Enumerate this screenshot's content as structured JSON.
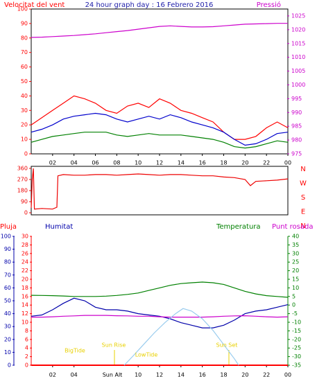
{
  "chart_data": [
    {
      "type": "line",
      "title": "24 hour graph day : 16 Febrero 2016",
      "x": [
        0,
        1,
        2,
        3,
        4,
        5,
        6,
        7,
        8,
        9,
        10,
        11,
        12,
        13,
        14,
        15,
        16,
        17,
        18,
        19,
        20,
        21,
        22,
        23,
        24
      ],
      "xlim": [
        0,
        24
      ],
      "xticks": [
        {
          "value": 2,
          "label": "02"
        },
        {
          "value": 4,
          "label": "04"
        },
        {
          "value": 6,
          "label": "06"
        },
        {
          "value": 8,
          "label": "08"
        },
        10,
        12,
        14,
        16,
        18,
        20,
        22,
        {
          "value": 24,
          "label": "00"
        }
      ],
      "ylim": [
        0,
        100
      ],
      "yticks": [
        0,
        10,
        20,
        30,
        40,
        50,
        60,
        70,
        80,
        90,
        100
      ],
      "y2lim": [
        975,
        1027.5
      ],
      "y2ticks": [
        975,
        980,
        985,
        990,
        995,
        1000,
        1005,
        1010,
        1015,
        1020,
        1025
      ],
      "series": [
        {
          "name": "Velocitat del vent",
          "color": "#ff0000",
          "values": [
            20,
            25,
            30,
            35,
            40,
            38,
            35,
            30,
            28,
            33,
            35,
            32,
            38,
            35,
            30,
            28,
            25,
            22,
            15,
            10,
            10,
            12,
            18,
            22,
            18
          ]
        },
        {
          "color": "#0000cc",
          "values": [
            15,
            17,
            20,
            24,
            26,
            27,
            28,
            27,
            24,
            22,
            24,
            26,
            24,
            27,
            25,
            22,
            20,
            18,
            15,
            10,
            6,
            7,
            10,
            14,
            15
          ]
        },
        {
          "color": "#008000",
          "values": [
            8,
            10,
            12,
            13,
            14,
            15,
            15,
            15,
            13,
            12,
            13,
            14,
            13,
            13,
            13,
            12,
            11,
            10,
            8,
            5,
            4,
            5,
            7,
            9,
            8
          ]
        },
        {
          "name": "Pressió",
          "color": "#cc00cc",
          "axis": "y2",
          "values": [
            1017.2,
            1017.3,
            1017.5,
            1017.7,
            1017.9,
            1018.2,
            1018.5,
            1018.9,
            1019.3,
            1019.7,
            1020.2,
            1020.7,
            1021.2,
            1021.4,
            1021.2,
            1021,
            1021,
            1021.1,
            1021.4,
            1021.7,
            1022,
            1022.1,
            1022.2,
            1022.3,
            1022.3
          ]
        }
      ]
    },
    {
      "type": "line",
      "x": [
        0,
        0.1,
        0.2,
        0.3,
        1,
        2,
        2.4,
        2.5,
        3,
        4,
        5,
        6,
        7,
        8,
        9,
        10,
        11,
        12,
        13,
        14,
        15,
        16,
        17,
        18,
        19,
        20,
        20.5,
        21,
        22,
        23,
        24
      ],
      "xlim": [
        0,
        24
      ],
      "ylim": [
        0,
        360
      ],
      "yticks": [
        0,
        90,
        180,
        270,
        360
      ],
      "compass": [
        "N",
        "W",
        "S",
        "E",
        "N"
      ],
      "series": [
        {
          "color": "#ee0000",
          "values": [
            40,
            270,
            360,
            30,
            35,
            30,
            45,
            300,
            310,
            305,
            305,
            310,
            310,
            305,
            310,
            315,
            310,
            305,
            310,
            310,
            305,
            300,
            300,
            290,
            285,
            270,
            220,
            255,
            260,
            265,
            275
          ]
        }
      ]
    },
    {
      "type": "line",
      "x": [
        0,
        1,
        2,
        3,
        4,
        5,
        6,
        7,
        8,
        9,
        10,
        11,
        12,
        13,
        14,
        15,
        16,
        17,
        18,
        19,
        20,
        21,
        22,
        23,
        24
      ],
      "xlim": [
        0,
        24
      ],
      "xticks": [
        {
          "value": 2,
          "label": "02"
        },
        {
          "value": 4,
          "label": "04"
        },
        10,
        12,
        14,
        16,
        18,
        20,
        22,
        {
          "value": 24,
          "label": "00"
        }
      ],
      "ylim": [
        0,
        30
      ],
      "yticks": [
        0,
        2,
        4,
        6,
        8,
        10,
        12,
        14,
        16,
        18,
        20,
        22,
        24,
        26,
        28,
        30
      ],
      "y2lim": [
        -35,
        40
      ],
      "y2ticks": [
        -35,
        -30,
        -25,
        -20,
        -15,
        -10,
        -5,
        0,
        5,
        10,
        15,
        20,
        25,
        30,
        35,
        40
      ],
      "y3lim": [
        0,
        100
      ],
      "y3ticks": [
        0,
        10,
        20,
        30,
        40,
        50,
        60,
        70,
        80,
        90,
        100
      ],
      "series": [
        {
          "name": "Pluja",
          "color": "#ff0000",
          "values": [
            0,
            0,
            0,
            0,
            0,
            0,
            0,
            0,
            0,
            0,
            0,
            0,
            0,
            0,
            0,
            0,
            0,
            0,
            0,
            0,
            0,
            0,
            0,
            0,
            0
          ]
        },
        {
          "name": "Humitat",
          "color": "#0000aa",
          "axis": "y3",
          "values": [
            38,
            39,
            43,
            48,
            52,
            50,
            45,
            43,
            43,
            42,
            40,
            39,
            38,
            36,
            33,
            31,
            29,
            29,
            31,
            35,
            40,
            42,
            43,
            45,
            47
          ]
        },
        {
          "name": "Temperatura",
          "color": "#008000",
          "axis": "y2",
          "values": [
            5.7,
            5.6,
            5.5,
            5.3,
            5,
            5,
            5,
            5.2,
            5.6,
            6.2,
            7,
            8.5,
            10,
            11.5,
            12.5,
            13,
            13.4,
            13,
            12,
            10,
            8,
            6.5,
            5.5,
            5,
            4.5
          ]
        },
        {
          "name": "Punt rosada",
          "color": "#cc00cc",
          "axis": "y2",
          "values": [
            -7,
            -7,
            -6.8,
            -6.5,
            -6.3,
            -6,
            -6,
            -6,
            -6.2,
            -6.3,
            -6.5,
            -6.5,
            -6.8,
            -7,
            -7,
            -7,
            -7,
            -6.8,
            -6.5,
            -6.3,
            -6.2,
            -6.5,
            -6.8,
            -7,
            -6.8
          ]
        },
        {
          "name": "Sun Alt",
          "color": "#99ccee",
          "axis": "y3",
          "x": [
            8.7,
            9.5,
            10.5,
            11.5,
            12.5,
            13.5,
            14.2,
            15,
            16,
            17,
            18,
            19,
            19.4
          ],
          "values": [
            0,
            7,
            16,
            25,
            33,
            40,
            44,
            42,
            36,
            27,
            16,
            5,
            0
          ]
        }
      ],
      "annotations": [
        "BigTide",
        "Sun Rise",
        "LowTide",
        "Sun Set"
      ]
    }
  ]
}
